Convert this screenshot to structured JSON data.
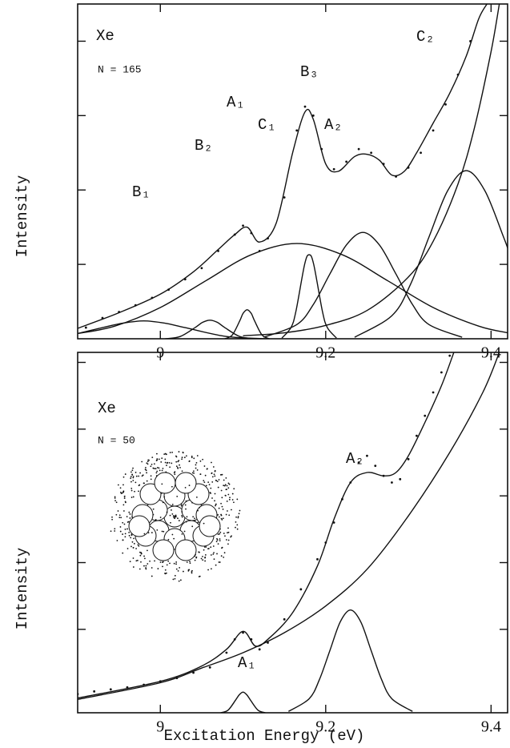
{
  "chart_data": [
    {
      "type": "line",
      "xlim": [
        8.9,
        9.42
      ],
      "ylim": [
        0,
        4.5
      ],
      "xticks": [
        9,
        9.2,
        9.4
      ],
      "yticks": [
        1,
        2,
        3,
        4
      ],
      "y_label": "Intensity",
      "annotations": [
        "Xe",
        "N = 165",
        "B₁",
        "B₂",
        "A₁",
        "C₁",
        "B₃",
        "A₂",
        "C₂"
      ],
      "series": [
        {
          "color": "#111",
          "marker": "dot",
          "x": [
            8.91,
            8.93,
            8.95,
            8.97,
            8.99,
            9.01,
            9.03,
            9.05,
            9.07,
            9.09,
            9.1,
            9.11,
            9.12,
            9.13,
            9.15,
            9.165,
            9.175,
            9.185,
            9.195,
            9.21,
            9.225,
            9.24,
            9.255,
            9.27,
            9.285,
            9.3,
            9.315,
            9.33,
            9.345,
            9.36,
            9.375
          ],
          "values": [
            0.15,
            0.28,
            0.36,
            0.45,
            0.55,
            0.66,
            0.8,
            0.95,
            1.18,
            1.4,
            1.52,
            1.42,
            1.18,
            1.35,
            1.9,
            2.8,
            3.12,
            3.0,
            2.55,
            2.28,
            2.38,
            2.55,
            2.5,
            2.35,
            2.18,
            2.3,
            2.5,
            2.8,
            3.15,
            3.55,
            4.0
          ]
        },
        {
          "color": "#111",
          "x": [
            8.9,
            8.95,
            9.0,
            9.04,
            9.07,
            9.09,
            9.105,
            9.12,
            9.14,
            9.16,
            9.175,
            9.185,
            9.2,
            9.215,
            9.235,
            9.25,
            9.265,
            9.28,
            9.295,
            9.31,
            9.33,
            9.35,
            9.37,
            9.385,
            9.395
          ],
          "values": [
            0.14,
            0.35,
            0.6,
            0.9,
            1.2,
            1.4,
            1.5,
            1.3,
            1.55,
            2.5,
            3.05,
            2.95,
            2.35,
            2.25,
            2.45,
            2.48,
            2.4,
            2.2,
            2.25,
            2.5,
            2.9,
            3.3,
            3.8,
            4.3,
            4.5
          ]
        },
        {
          "color": "#111",
          "x": [
            8.9,
            8.93,
            8.955,
            8.98,
            9.005,
            9.03,
            9.08,
            9.13
          ],
          "values": [
            0.07,
            0.15,
            0.21,
            0.24,
            0.21,
            0.15,
            0.03,
            0.0
          ]
        },
        {
          "color": "#111",
          "x": [
            9.006,
            9.024,
            9.042,
            9.051,
            9.06,
            9.069,
            9.078,
            9.096,
            9.114
          ],
          "values": [
            0.0,
            0.03,
            0.15,
            0.22,
            0.25,
            0.22,
            0.15,
            0.03,
            0.0
          ]
        },
        {
          "color": "#111",
          "x": [
            9.078,
            9.087,
            9.096,
            9.1,
            9.105,
            9.11,
            9.114,
            9.123,
            9.132
          ],
          "values": [
            0,
            0.05,
            0.24,
            0.34,
            0.39,
            0.34,
            0.24,
            0.05,
            0
          ]
        },
        {
          "color": "#111",
          "x": [
            8.9,
            8.945,
            9.0,
            9.055,
            9.11,
            9.165,
            9.22,
            9.275,
            9.33,
            9.385,
            9.42
          ],
          "values": [
            0.07,
            0.17,
            0.42,
            0.78,
            1.13,
            1.28,
            1.13,
            0.78,
            0.42,
            0.17,
            0.08
          ]
        },
        {
          "color": "#111",
          "x": [
            9.147,
            9.158,
            9.164,
            9.1745,
            9.18,
            9.1855,
            9.196,
            9.202,
            9.213
          ],
          "values": [
            0.01,
            0.15,
            0.37,
            1.0,
            1.13,
            1.0,
            0.37,
            0.15,
            0.01
          ]
        },
        {
          "color": "#111",
          "x": [
            9.125,
            9.165,
            9.185,
            9.205,
            9.225,
            9.245,
            9.265,
            9.285,
            9.305,
            9.325,
            9.365
          ],
          "values": [
            0.02,
            0.19,
            0.46,
            0.87,
            1.26,
            1.43,
            1.26,
            0.87,
            0.46,
            0.19,
            0.02
          ]
        },
        {
          "color": "#111",
          "x": [
            9.235,
            9.28,
            9.3025,
            9.325,
            9.3475,
            9.37,
            9.3925,
            9.415,
            9.42
          ],
          "values": [
            0.02,
            0.31,
            0.73,
            1.37,
            1.99,
            2.26,
            1.99,
            1.37,
            1.22
          ]
        },
        {
          "color": "#111",
          "x": [
            9.1,
            9.15,
            9.2,
            9.25,
            9.3,
            9.33,
            9.36,
            9.38,
            9.4,
            9.41
          ],
          "values": [
            0.04,
            0.08,
            0.18,
            0.38,
            0.83,
            1.31,
            2.08,
            2.84,
            3.86,
            4.5
          ]
        }
      ]
    },
    {
      "type": "line",
      "xlim": [
        8.9,
        9.42
      ],
      "ylim": [
        0,
        5.4
      ],
      "xticks": [
        9,
        9.2,
        9.4
      ],
      "yticks": [
        1.25,
        2.25,
        3.25,
        4.25,
        5.25
      ],
      "y_label": "Intensity",
      "x_label": "Excitation Energy (eV)",
      "annotations": [
        "Xe",
        "N = 50",
        "A₂",
        "A₁"
      ],
      "series": [
        {
          "color": "#111",
          "marker": "dot",
          "x": [
            8.9,
            8.92,
            8.94,
            8.96,
            8.98,
            9.0,
            9.02,
            9.04,
            9.06,
            9.08,
            9.09,
            9.1,
            9.11,
            9.12,
            9.13,
            9.15,
            9.17,
            9.19,
            9.2,
            9.21,
            9.22,
            9.23,
            9.24,
            9.25,
            9.26,
            9.27,
            9.28,
            9.29,
            9.3,
            9.31,
            9.32,
            9.33,
            9.34,
            9.35
          ],
          "values": [
            0.28,
            0.32,
            0.35,
            0.38,
            0.42,
            0.47,
            0.52,
            0.6,
            0.68,
            0.9,
            1.1,
            1.2,
            1.1,
            0.95,
            1.05,
            1.4,
            1.85,
            2.3,
            2.55,
            2.85,
            3.2,
            3.45,
            3.75,
            3.85,
            3.7,
            3.55,
            3.45,
            3.5,
            3.8,
            4.15,
            4.45,
            4.8,
            5.1,
            5.35
          ]
        },
        {
          "color": "#111",
          "x": [
            8.9,
            9.0,
            9.05,
            9.08,
            9.1,
            9.115,
            9.13,
            9.16,
            9.19,
            9.21,
            9.23,
            9.25,
            9.27,
            9.285,
            9.3,
            9.32,
            9.34,
            9.355
          ],
          "values": [
            0.22,
            0.47,
            0.7,
            0.95,
            1.22,
            1.0,
            1.1,
            1.5,
            2.2,
            2.9,
            3.45,
            3.6,
            3.55,
            3.6,
            3.85,
            4.35,
            4.9,
            5.4
          ]
        },
        {
          "color": "#111",
          "x": [
            9.073,
            9.082,
            9.091,
            9.0955,
            9.1,
            9.1045,
            9.109,
            9.118,
            9.127
          ],
          "values": [
            0,
            0.04,
            0.19,
            0.27,
            0.31,
            0.27,
            0.19,
            0.04,
            0
          ]
        },
        {
          "color": "#111",
          "x": [
            9.155,
            9.18,
            9.1925,
            9.205,
            9.2175,
            9.23,
            9.2425,
            9.255,
            9.2675,
            9.28,
            9.305
          ],
          "values": [
            0.02,
            0.21,
            0.5,
            0.93,
            1.36,
            1.54,
            1.36,
            0.93,
            0.5,
            0.21,
            0.02
          ]
        },
        {
          "color": "#111",
          "x": [
            8.9,
            9.0,
            9.05,
            9.1,
            9.15,
            9.2,
            9.25,
            9.3,
            9.35,
            9.39,
            9.41
          ],
          "values": [
            0.2,
            0.45,
            0.67,
            0.9,
            1.2,
            1.6,
            2.15,
            2.95,
            3.9,
            4.8,
            5.4
          ]
        }
      ]
    }
  ]
}
